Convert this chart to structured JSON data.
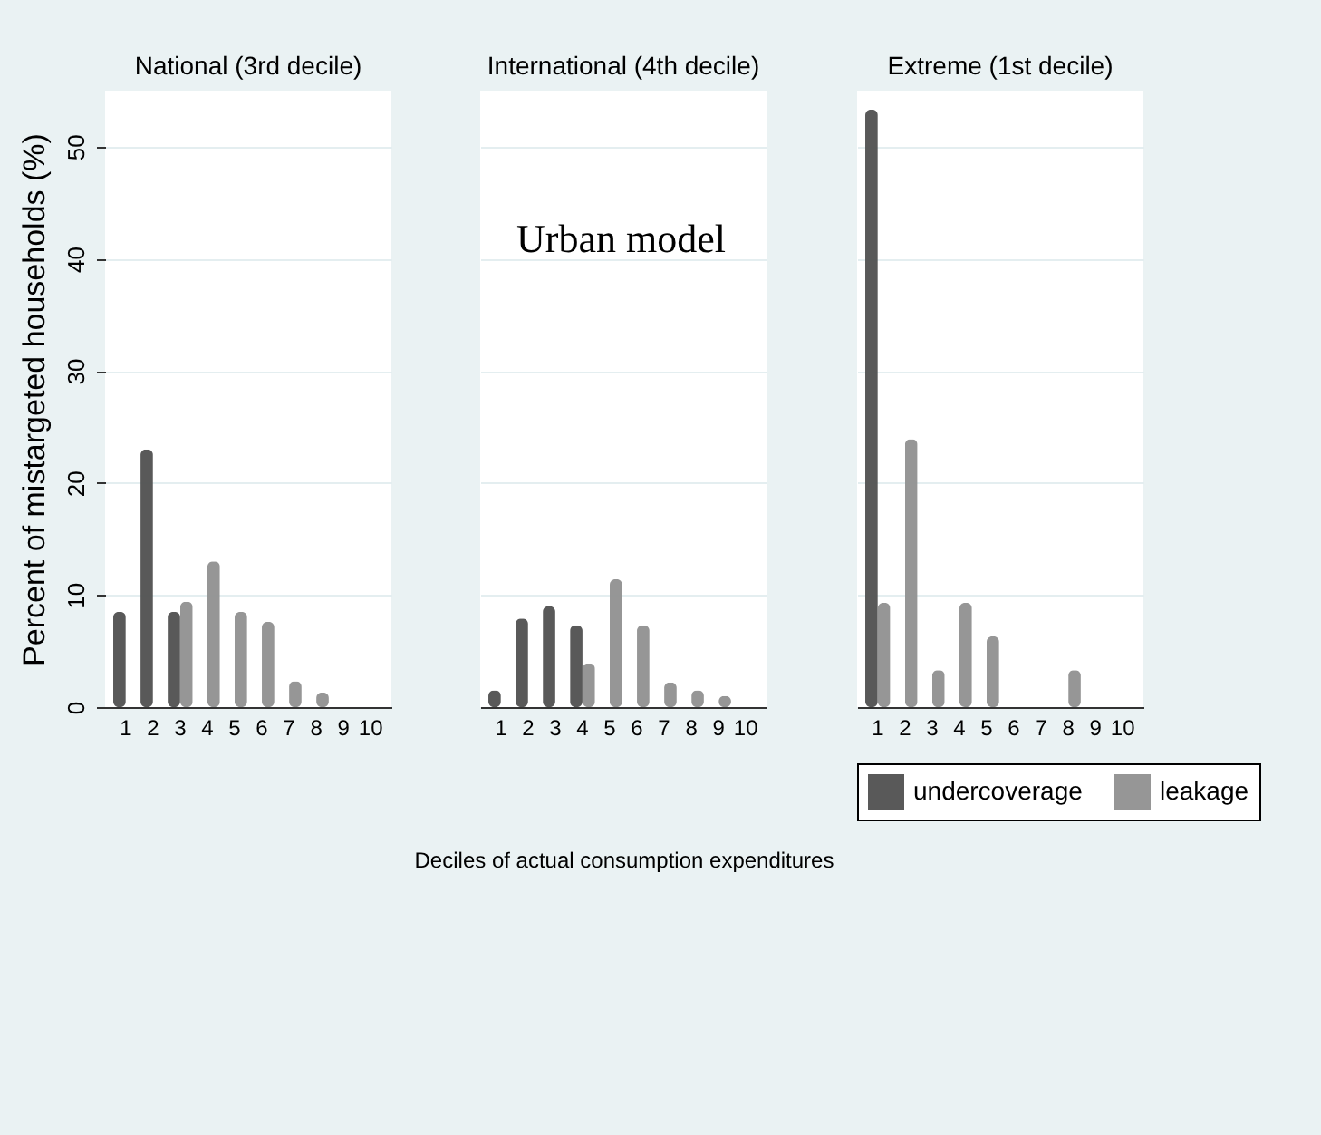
{
  "chart_data": [
    {
      "type": "bar",
      "title": "National (3rd decile)",
      "ylabel": "Percent of mistargeted households (%)",
      "categories": [
        "1",
        "2",
        "3",
        "4",
        "5",
        "6",
        "7",
        "8",
        "9",
        "10"
      ],
      "ylim": [
        0,
        55
      ],
      "yticks": [
        0,
        10,
        20,
        30,
        40,
        50
      ],
      "grid": "y",
      "series": [
        {
          "color": "#505050",
          "values": [
            8.5,
            23.0,
            8.5,
            null,
            null,
            null,
            null,
            null,
            null,
            null
          ]
        },
        {
          "color": "#909090",
          "values": [
            null,
            null,
            9.4,
            13.0,
            8.5,
            7.6,
            2.3,
            1.3,
            null,
            null
          ]
        }
      ]
    },
    {
      "type": "bar",
      "title": "International (4th decile)",
      "xlabel": "Deciles of actual consumption expenditures",
      "annotations": [
        "Urban model"
      ],
      "categories": [
        "1",
        "2",
        "3",
        "4",
        "5",
        "6",
        "7",
        "8",
        "9",
        "10"
      ],
      "ylim": [
        0,
        55
      ],
      "yticks": [
        0,
        10,
        20,
        30,
        40,
        50
      ],
      "grid": "y",
      "tick_labels": "x",
      "series": [
        {
          "color": "#505050",
          "values": [
            1.5,
            7.9,
            9.0,
            7.3,
            null,
            null,
            null,
            null,
            null,
            null
          ]
        },
        {
          "color": "#909090",
          "values": [
            null,
            null,
            null,
            3.9,
            11.4,
            7.3,
            2.2,
            1.5,
            1.0,
            null
          ]
        }
      ]
    },
    {
      "type": "bar",
      "title": "Extreme (1st decile)",
      "categories": [
        "1",
        "2",
        "3",
        "4",
        "5",
        "6",
        "7",
        "8",
        "9",
        "10"
      ],
      "ylim": [
        0,
        55
      ],
      "yticks": [
        0,
        10,
        20,
        30,
        40,
        50
      ],
      "grid": "y",
      "legend": "bottom",
      "tick_labels": "x",
      "series": [
        {
          "name": "undercoverage",
          "color": "#505050",
          "values": [
            53.3,
            null,
            null,
            null,
            null,
            null,
            null,
            null,
            null,
            null
          ]
        },
        {
          "name": "leakage",
          "color": "#909090",
          "values": [
            9.3,
            23.9,
            3.3,
            9.3,
            6.3,
            null,
            null,
            3.3,
            null,
            null
          ]
        }
      ]
    }
  ]
}
